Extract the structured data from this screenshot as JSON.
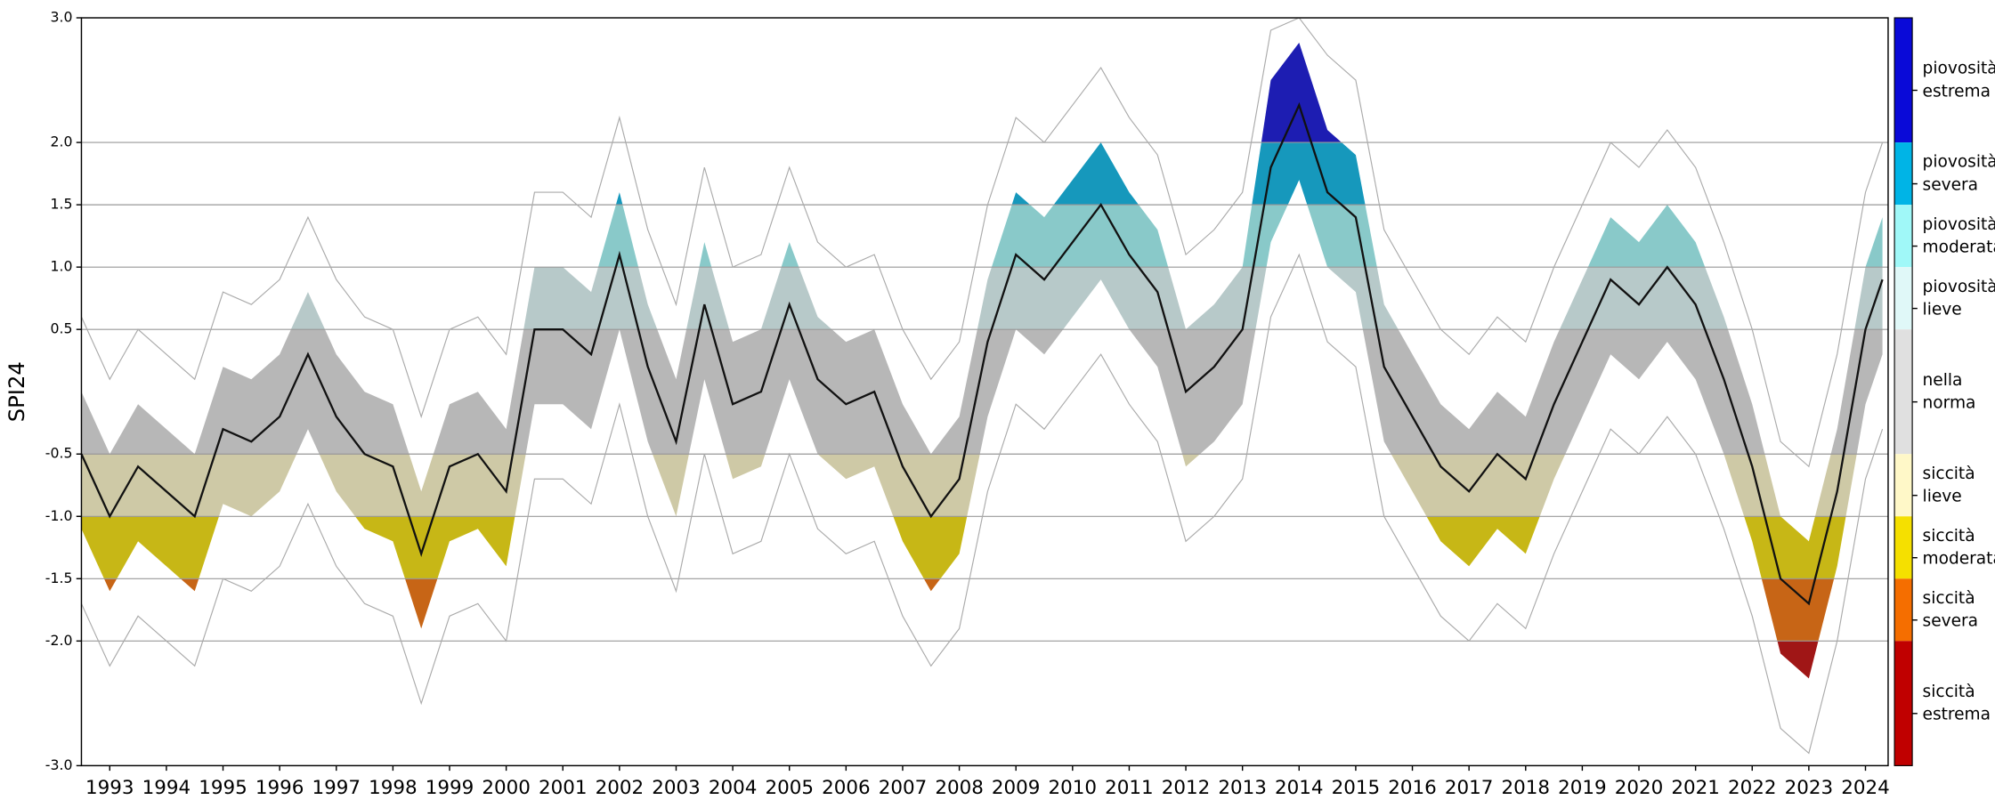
{
  "chart_data": {
    "type": "line",
    "y_label": "SPI24",
    "xlim": [
      1993,
      2024.9
    ],
    "ylim": [
      -3,
      3
    ],
    "grid": true,
    "yticks": [
      {
        "value": 3,
        "label": "3.0"
      },
      {
        "value": 2,
        "label": "2.0"
      },
      1.5,
      {
        "value": 1,
        "label": "1.0"
      },
      0.5,
      -0.5,
      {
        "value": -1,
        "label": "-1.0"
      },
      -1.5,
      {
        "value": -2,
        "label": "-2.0"
      },
      {
        "value": -3,
        "label": "-3.0"
      }
    ],
    "xticks": [
      {
        "value": 1993.5,
        "label": "1993"
      },
      {
        "value": 1994.5,
        "label": "1994"
      },
      {
        "value": 1995.5,
        "label": "1995"
      },
      {
        "value": 1996.5,
        "label": "1996"
      },
      {
        "value": 1997.5,
        "label": "1997"
      },
      {
        "value": 1998.5,
        "label": "1998"
      },
      {
        "value": 1999.5,
        "label": "1999"
      },
      {
        "value": 2000.5,
        "label": "2000"
      },
      {
        "value": 2001.5,
        "label": "2001"
      },
      {
        "value": 2002.5,
        "label": "2002"
      },
      {
        "value": 2003.5,
        "label": "2003"
      },
      {
        "value": 2004.5,
        "label": "2004"
      },
      {
        "value": 2005.5,
        "label": "2005"
      },
      {
        "value": 2006.5,
        "label": "2006"
      },
      {
        "value": 2007.5,
        "label": "2007"
      },
      {
        "value": 2008.5,
        "label": "2008"
      },
      {
        "value": 2009.5,
        "label": "2009"
      },
      {
        "value": 2010.5,
        "label": "2010"
      },
      {
        "value": 2011.5,
        "label": "2011"
      },
      {
        "value": 2012.5,
        "label": "2012"
      },
      {
        "value": 2013.5,
        "label": "2013"
      },
      {
        "value": 2014.5,
        "label": "2014"
      },
      {
        "value": 2015.5,
        "label": "2015"
      },
      {
        "value": 2016.5,
        "label": "2016"
      },
      {
        "value": 2017.5,
        "label": "2017"
      },
      {
        "value": 2018.5,
        "label": "2018"
      },
      {
        "value": 2019.5,
        "label": "2019"
      },
      {
        "value": 2020.5,
        "label": "2020"
      },
      {
        "value": 2021.5,
        "label": "2021"
      },
      {
        "value": 2022.5,
        "label": "2022"
      },
      {
        "value": 2023.5,
        "label": "2023"
      },
      {
        "value": 2024.5,
        "label": "2024"
      }
    ],
    "x": [
      1993.0,
      1993.5,
      1994.0,
      1994.5,
      1995.0,
      1995.5,
      1996.0,
      1996.5,
      1997.0,
      1997.5,
      1998.0,
      1998.5,
      1999.0,
      1999.5,
      2000.0,
      2000.5,
      2001.0,
      2001.5,
      2002.0,
      2002.5,
      2003.0,
      2003.5,
      2004.0,
      2004.5,
      2005.0,
      2005.5,
      2006.0,
      2006.5,
      2007.0,
      2007.5,
      2008.0,
      2008.5,
      2009.0,
      2009.5,
      2010.0,
      2010.5,
      2011.0,
      2011.5,
      2012.0,
      2012.5,
      2013.0,
      2013.5,
      2014.0,
      2014.5,
      2015.0,
      2015.5,
      2016.0,
      2016.5,
      2017.0,
      2017.5,
      2018.0,
      2018.5,
      2019.0,
      2019.5,
      2020.0,
      2020.5,
      2021.0,
      2021.5,
      2022.0,
      2022.5,
      2023.0,
      2023.5,
      2024.0,
      2024.5,
      2024.8
    ],
    "series": [
      {
        "color": "#111111",
        "values": [
          -0.5,
          -1.0,
          -0.6,
          -0.8,
          -1.0,
          -0.3,
          -0.4,
          -0.2,
          0.3,
          -0.2,
          -0.5,
          -0.6,
          -1.3,
          -0.6,
          -0.5,
          -0.8,
          0.5,
          0.5,
          0.3,
          1.1,
          0.2,
          -0.4,
          0.7,
          -0.1,
          0.0,
          0.7,
          0.1,
          -0.1,
          0.0,
          -0.6,
          -1.0,
          -0.7,
          0.4,
          1.1,
          0.9,
          1.2,
          1.5,
          1.1,
          0.8,
          0.0,
          0.2,
          0.5,
          1.8,
          2.3,
          1.6,
          1.4,
          0.2,
          -0.2,
          -0.6,
          -0.8,
          -0.5,
          -0.7,
          -0.1,
          0.4,
          0.9,
          0.7,
          1.0,
          0.7,
          0.1,
          -0.6,
          -1.5,
          -1.7,
          -0.8,
          0.5,
          0.9
        ]
      }
    ],
    "band": {
      "upper": [
        0.0,
        -0.5,
        -0.1,
        -0.3,
        -0.5,
        0.2,
        0.1,
        0.3,
        0.8,
        0.3,
        0.0,
        -0.1,
        -0.8,
        -0.1,
        0.0,
        -0.3,
        1.0,
        1.0,
        0.8,
        1.6,
        0.7,
        0.1,
        1.2,
        0.4,
        0.5,
        1.2,
        0.6,
        0.4,
        0.5,
        -0.1,
        -0.5,
        -0.2,
        0.9,
        1.6,
        1.4,
        1.7,
        2.0,
        1.6,
        1.3,
        0.5,
        0.7,
        1.0,
        2.5,
        2.8,
        2.1,
        1.9,
        0.7,
        0.3,
        -0.1,
        -0.3,
        0.0,
        -0.2,
        0.4,
        0.9,
        1.4,
        1.2,
        1.5,
        1.2,
        0.6,
        -0.1,
        -1.0,
        -1.2,
        -0.3,
        1.0,
        1.4
      ],
      "lower": [
        -1.1,
        -1.6,
        -1.2,
        -1.4,
        -1.6,
        -0.9,
        -1.0,
        -0.8,
        -0.3,
        -0.8,
        -1.1,
        -1.2,
        -1.9,
        -1.2,
        -1.1,
        -1.4,
        -0.1,
        -0.1,
        -0.3,
        0.5,
        -0.4,
        -1.0,
        0.1,
        -0.7,
        -0.6,
        0.1,
        -0.5,
        -0.7,
        -0.6,
        -1.2,
        -1.6,
        -1.3,
        -0.2,
        0.5,
        0.3,
        0.6,
        0.9,
        0.5,
        0.2,
        -0.6,
        -0.4,
        -0.1,
        1.2,
        1.7,
        1.0,
        0.8,
        -0.4,
        -0.8,
        -1.2,
        -1.4,
        -1.1,
        -1.3,
        -0.7,
        -0.2,
        0.3,
        0.1,
        0.4,
        0.1,
        -0.5,
        -1.2,
        -2.1,
        -2.3,
        -1.4,
        -0.1,
        0.3
      ]
    },
    "extremes": {
      "color": "#aaaaaa",
      "upper": [
        0.6,
        0.1,
        0.5,
        0.3,
        0.1,
        0.8,
        0.7,
        0.9,
        1.4,
        0.9,
        0.6,
        0.5,
        -0.2,
        0.5,
        0.6,
        0.3,
        1.6,
        1.6,
        1.4,
        2.2,
        1.3,
        0.7,
        1.8,
        1.0,
        1.1,
        1.8,
        1.2,
        1.0,
        1.1,
        0.5,
        0.1,
        0.4,
        1.5,
        2.2,
        2.0,
        2.3,
        2.6,
        2.2,
        1.9,
        1.1,
        1.3,
        1.6,
        2.9,
        3.0,
        2.7,
        2.5,
        1.3,
        0.9,
        0.5,
        0.3,
        0.6,
        0.4,
        1.0,
        1.5,
        2.0,
        1.8,
        2.1,
        1.8,
        1.2,
        0.5,
        -0.4,
        -0.6,
        0.3,
        1.6,
        2.0
      ],
      "lower": [
        -1.7,
        -2.2,
        -1.8,
        -2.0,
        -2.2,
        -1.5,
        -1.6,
        -1.4,
        -0.9,
        -1.4,
        -1.7,
        -1.8,
        -2.5,
        -1.8,
        -1.7,
        -2.0,
        -0.7,
        -0.7,
        -0.9,
        -0.1,
        -1.0,
        -1.6,
        -0.5,
        -1.3,
        -1.2,
        -0.5,
        -1.1,
        -1.3,
        -1.2,
        -1.8,
        -2.2,
        -1.9,
        -0.8,
        -0.1,
        -0.3,
        0.0,
        0.3,
        -0.1,
        -0.4,
        -1.2,
        -1.0,
        -0.7,
        0.6,
        1.1,
        0.4,
        0.2,
        -1.0,
        -1.4,
        -1.8,
        -2.0,
        -1.7,
        -1.9,
        -1.3,
        -0.8,
        -0.3,
        -0.5,
        -0.2,
        -0.5,
        -1.1,
        -1.8,
        -2.7,
        -2.9,
        -2.0,
        -0.7,
        -0.3
      ]
    },
    "classes": [
      {
        "label": [
          "piovosità",
          "estrema"
        ],
        "color": "#0a0ad8",
        "range": [
          2,
          3
        ]
      },
      {
        "label": [
          "piovosità",
          "severa"
        ],
        "color": "#00b4e6",
        "range": [
          1.5,
          2
        ]
      },
      {
        "label": [
          "piovosità",
          "moderata"
        ],
        "color": "#a0f8f8",
        "range": [
          1,
          1.5
        ]
      },
      {
        "label": [
          "piovosità",
          "lieve"
        ],
        "color": "#e0f8f8",
        "range": [
          0.5,
          1
        ]
      },
      {
        "label": [
          "nella",
          "norma"
        ],
        "color": "#e0e0e0",
        "range": [
          -0.5,
          0.5
        ]
      },
      {
        "label": [
          "siccità",
          "lieve"
        ],
        "color": "#fff8c8",
        "range": [
          -1,
          -0.5
        ]
      },
      {
        "label": [
          "siccità",
          "moderata"
        ],
        "color": "#f5e000",
        "range": [
          -1.5,
          -1
        ]
      },
      {
        "label": [
          "siccità",
          "severa"
        ],
        "color": "#f56e00",
        "range": [
          -2,
          -1.5
        ]
      },
      {
        "label": [
          "siccità",
          "estrema"
        ],
        "color": "#c00000",
        "range": [
          -3,
          -2
        ]
      }
    ]
  }
}
